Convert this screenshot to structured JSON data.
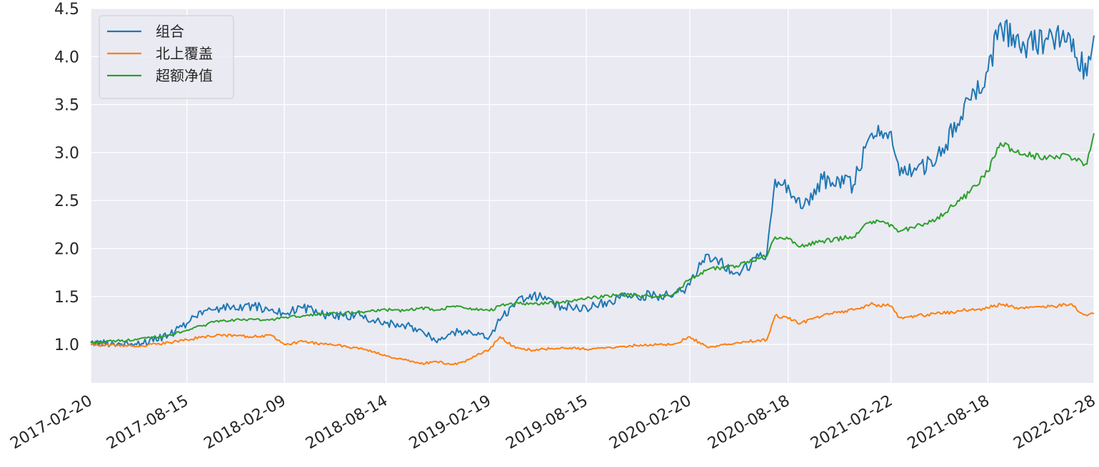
{
  "chart_data": {
    "type": "line",
    "title": "",
    "xlabel": "",
    "ylabel": "",
    "ylim": [
      0.6,
      4.5
    ],
    "x_tick_labels": [
      "2017-02-20",
      "2017-08-15",
      "2018-02-09",
      "2018-08-14",
      "2019-02-19",
      "2019-08-15",
      "2020-02-20",
      "2020-08-18",
      "2021-02-22",
      "2021-08-18",
      "2022-02-28"
    ],
    "y_ticks": [
      1.0,
      1.5,
      2.0,
      2.5,
      3.0,
      3.5,
      4.0,
      4.5
    ],
    "y_tick_labels": [
      "1.0",
      "1.5",
      "2.0",
      "2.5",
      "3.0",
      "3.5",
      "4.0",
      "4.5"
    ],
    "grid": true,
    "legend_position": "top-left",
    "x": [
      "2017-02-20",
      "2017-05-15",
      "2017-07-15",
      "2017-08-15",
      "2017-09-15",
      "2017-10-15",
      "2017-12-15",
      "2018-01-15",
      "2018-02-09",
      "2018-03-15",
      "2018-05-01",
      "2018-07-01",
      "2018-08-14",
      "2018-09-15",
      "2018-10-15",
      "2018-11-15",
      "2018-12-15",
      "2019-01-03",
      "2019-02-19",
      "2019-03-10",
      "2019-04-08",
      "2019-05-10",
      "2019-07-01",
      "2019-08-15",
      "2019-10-15",
      "2019-12-10",
      "2020-01-20",
      "2020-02-20",
      "2020-03-23",
      "2020-05-15",
      "2020-07-10",
      "2020-07-25",
      "2020-08-18",
      "2020-09-10",
      "2020-10-20",
      "2020-12-15",
      "2021-01-15",
      "2021-02-22",
      "2021-03-10",
      "2021-05-15",
      "2021-07-15",
      "2021-08-18",
      "2021-09-10",
      "2021-10-15",
      "2021-12-15",
      "2022-01-15",
      "2022-02-15",
      "2022-02-28"
    ],
    "series": [
      {
        "name": "组合",
        "color": "#1f77b4",
        "values": [
          1.02,
          1.0,
          1.1,
          1.22,
          1.35,
          1.38,
          1.4,
          1.36,
          1.32,
          1.38,
          1.3,
          1.3,
          1.22,
          1.2,
          1.16,
          1.02,
          1.13,
          1.12,
          1.08,
          1.25,
          1.44,
          1.52,
          1.4,
          1.38,
          1.48,
          1.52,
          1.5,
          1.62,
          1.94,
          1.75,
          1.95,
          2.72,
          2.66,
          2.42,
          2.72,
          2.66,
          3.18,
          3.22,
          2.76,
          2.9,
          3.55,
          3.85,
          4.35,
          4.1,
          4.18,
          4.22,
          3.8,
          4.22
        ]
      },
      {
        "name": "北上覆盖",
        "color": "#ff7f0e",
        "values": [
          1.0,
          0.98,
          1.02,
          1.05,
          1.08,
          1.1,
          1.08,
          1.1,
          1.0,
          1.03,
          1.0,
          0.96,
          0.88,
          0.84,
          0.8,
          0.82,
          0.79,
          0.82,
          0.95,
          1.08,
          0.96,
          0.94,
          0.97,
          0.95,
          0.98,
          1.0,
          1.0,
          1.08,
          0.97,
          1.02,
          1.05,
          1.3,
          1.27,
          1.22,
          1.3,
          1.36,
          1.42,
          1.4,
          1.28,
          1.32,
          1.36,
          1.38,
          1.42,
          1.38,
          1.4,
          1.42,
          1.3,
          1.32
        ]
      },
      {
        "name": "超额净值",
        "color": "#2ca02c",
        "values": [
          1.02,
          1.05,
          1.1,
          1.15,
          1.2,
          1.25,
          1.26,
          1.26,
          1.28,
          1.3,
          1.32,
          1.34,
          1.36,
          1.35,
          1.38,
          1.36,
          1.4,
          1.38,
          1.35,
          1.4,
          1.44,
          1.42,
          1.44,
          1.48,
          1.52,
          1.5,
          1.52,
          1.68,
          1.78,
          1.82,
          1.92,
          2.12,
          2.1,
          2.02,
          2.08,
          2.12,
          2.28,
          2.25,
          2.18,
          2.3,
          2.58,
          2.8,
          3.1,
          2.98,
          2.95,
          2.96,
          2.88,
          3.2
        ]
      }
    ]
  }
}
